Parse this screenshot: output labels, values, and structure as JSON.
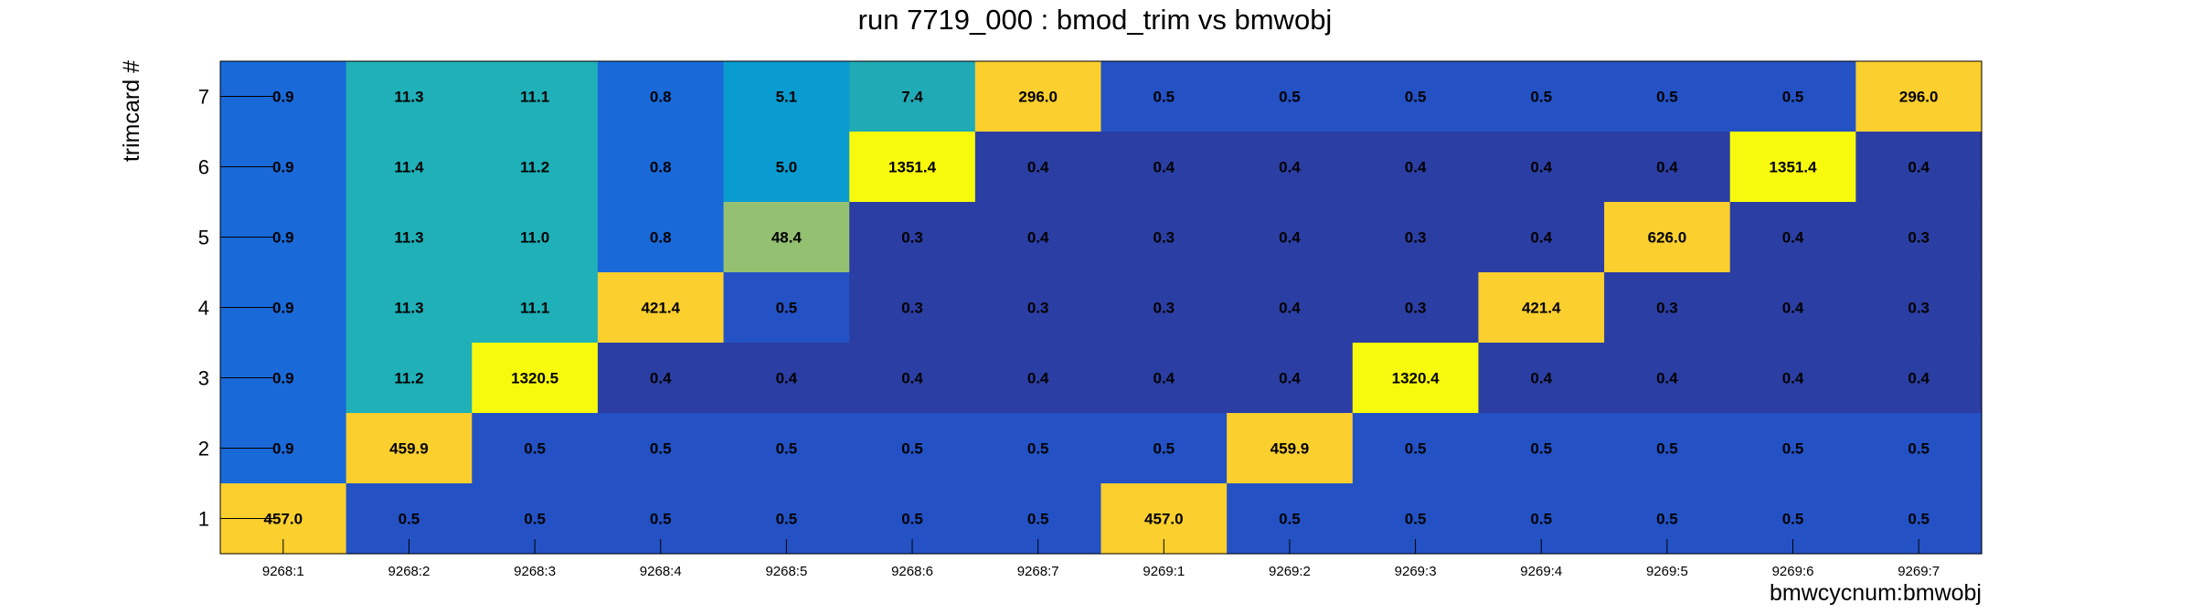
{
  "chart_data": {
    "type": "heatmap",
    "title": "run 7719_000 : bmod_trim vs bmwobj",
    "xlabel": "bmwcycnum:bmwobj",
    "ylabel": "trimcard #",
    "x_categories": [
      "9268:1",
      "9268:2",
      "9268:3",
      "9268:4",
      "9268:5",
      "9268:6",
      "9268:7",
      "9269:1",
      "9269:2",
      "9269:3",
      "9269:4",
      "9269:5",
      "9269:6",
      "9269:7"
    ],
    "y_categories": [
      "1",
      "2",
      "3",
      "4",
      "5",
      "6",
      "7"
    ],
    "rows": [
      {
        "y": "7",
        "values": [
          "0.9",
          "11.3",
          "11.1",
          "0.8",
          "5.1",
          "7.4",
          "296.0",
          "0.5",
          "0.5",
          "0.5",
          "0.5",
          "0.5",
          "0.5",
          "296.0"
        ]
      },
      {
        "y": "6",
        "values": [
          "0.9",
          "11.4",
          "11.2",
          "0.8",
          "5.0",
          "1351.4",
          "0.4",
          "0.4",
          "0.4",
          "0.4",
          "0.4",
          "0.4",
          "1351.4",
          "0.4"
        ]
      },
      {
        "y": "5",
        "values": [
          "0.9",
          "11.3",
          "11.0",
          "0.8",
          "48.4",
          "0.3",
          "0.4",
          "0.3",
          "0.4",
          "0.3",
          "0.4",
          "626.0",
          "0.4",
          "0.3"
        ]
      },
      {
        "y": "4",
        "values": [
          "0.9",
          "11.3",
          "11.1",
          "421.4",
          "0.5",
          "0.3",
          "0.3",
          "0.3",
          "0.4",
          "0.3",
          "421.4",
          "0.3",
          "0.4",
          "0.3"
        ]
      },
      {
        "y": "3",
        "values": [
          "0.9",
          "11.2",
          "1320.5",
          "0.4",
          "0.4",
          "0.4",
          "0.4",
          "0.4",
          "0.4",
          "1320.4",
          "0.4",
          "0.4",
          "0.4",
          "0.4"
        ]
      },
      {
        "y": "2",
        "values": [
          "0.9",
          "459.9",
          "0.5",
          "0.5",
          "0.5",
          "0.5",
          "0.5",
          "0.5",
          "459.9",
          "0.5",
          "0.5",
          "0.5",
          "0.5",
          "0.5"
        ]
      },
      {
        "y": "1",
        "values": [
          "457.0",
          "0.5",
          "0.5",
          "0.5",
          "0.5",
          "0.5",
          "0.5",
          "457.0",
          "0.5",
          "0.5",
          "0.5",
          "0.5",
          "0.5",
          "0.5"
        ]
      }
    ],
    "grid": false,
    "legend": "none",
    "colors": {
      "lowest": "#2b3ea3",
      "low": "#2452c5",
      "mid_low": "#1969d9",
      "cyan_blue": "#0a9bd0",
      "teal": "#1fb0b8",
      "mid_teal": "#20aab5",
      "green": "#94c072",
      "orange": "#fbcf2e",
      "yellow": "#f8fa0d"
    }
  }
}
